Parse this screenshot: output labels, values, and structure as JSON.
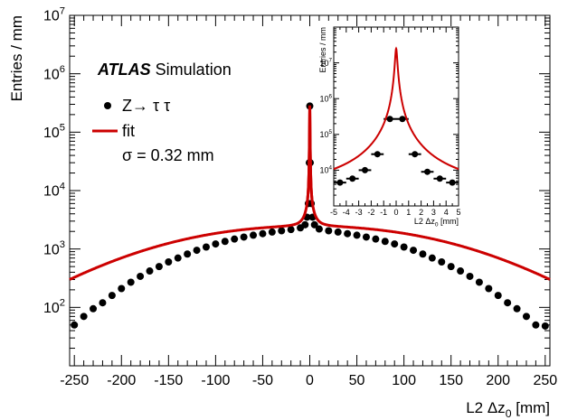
{
  "chart_data": [
    {
      "type": "scatter",
      "xlabel": "L2 Δz",
      "xlabel_sub": "0",
      "xlabel_unit": " [mm]",
      "ylabel": "Entries / mm",
      "xlim": [
        -255,
        255
      ],
      "ylim": [
        10,
        10000000
      ],
      "yscale": "log",
      "x_ticks": [
        -250,
        -200,
        -150,
        -100,
        -50,
        0,
        50,
        100,
        150,
        200,
        250
      ],
      "x_tick_labels": [
        "-250",
        "-200",
        "-150",
        "-100",
        "-50",
        "0",
        "50",
        "100",
        "150",
        "200",
        "250"
      ],
      "y_tick_exponents": [
        2,
        3,
        4,
        5,
        6,
        7
      ],
      "y_tick_base": "10",
      "atlas_label": "ATLAS",
      "atlas_sublabel": "Simulation",
      "legend": {
        "placement": "top-left",
        "entries": [
          {
            "label": "Z→ τ τ",
            "style": "marker"
          },
          {
            "label": "fit",
            "style": "line"
          }
        ],
        "sigma_text": "σ = 0.32 mm"
      },
      "colors": {
        "data": "#000000",
        "fit": "#cc0000"
      },
      "series": [
        {
          "name": "Z→ τ τ",
          "x": [
            -250,
            -240,
            -230,
            -220,
            -210,
            -200,
            -190,
            -180,
            -170,
            -160,
            -150,
            -140,
            -130,
            -120,
            -110,
            -100,
            -90,
            -80,
            -70,
            -60,
            -50,
            -40,
            -30,
            -20,
            -10,
            -5,
            -3,
            -1.5,
            -0.5,
            0,
            0.5,
            1.5,
            3,
            5,
            10,
            20,
            30,
            40,
            50,
            60,
            70,
            80,
            90,
            100,
            110,
            120,
            130,
            140,
            150,
            160,
            170,
            180,
            190,
            200,
            210,
            220,
            230,
            240,
            250
          ],
          "y": [
            50,
            70,
            95,
            120,
            160,
            210,
            270,
            340,
            420,
            500,
            600,
            700,
            820,
            950,
            1080,
            1220,
            1350,
            1480,
            1600,
            1720,
            1830,
            1950,
            2050,
            2150,
            2300,
            2600,
            3500,
            6000,
            30000,
            280000,
            30000,
            6000,
            3500,
            2600,
            2200,
            2050,
            1950,
            1830,
            1720,
            1600,
            1480,
            1350,
            1220,
            1080,
            950,
            820,
            700,
            600,
            500,
            420,
            340,
            270,
            210,
            160,
            120,
            95,
            70,
            50,
            48
          ]
        },
        {
          "name": "fit",
          "sigma": 0.32
        }
      ]
    },
    {
      "type": "scatter",
      "placement": "inset-top-right",
      "xlabel": "L2 Δz",
      "xlabel_sub": "0",
      "xlabel_unit": " [mm]",
      "ylabel": "Entries / mm",
      "xlim": [
        -5,
        5
      ],
      "ylim": [
        1000,
        100000000
      ],
      "yscale": "log",
      "x_ticks": [
        -5,
        -4,
        -3,
        -2,
        -1,
        0,
        1,
        2,
        3,
        4,
        5
      ],
      "x_tick_labels": [
        "-5",
        "-4",
        "-3",
        "-2",
        "-1",
        "0",
        "1",
        "2",
        "3",
        "4",
        "5"
      ],
      "y_tick_exponents": [
        4,
        5,
        6,
        7
      ],
      "y_tick_base": "10",
      "series": [
        {
          "name": "Z→ τ τ",
          "x": [
            -4.5,
            -3.5,
            -2.5,
            -1.5,
            -0.5,
            0.5,
            1.5,
            2.5,
            3.5,
            4.5
          ],
          "xerr": 0.5,
          "y": [
            4500,
            5800,
            10000,
            28000,
            270000,
            270000,
            28000,
            9000,
            5800,
            4500
          ]
        },
        {
          "name": "fit",
          "peak": 25000000
        }
      ]
    }
  ]
}
